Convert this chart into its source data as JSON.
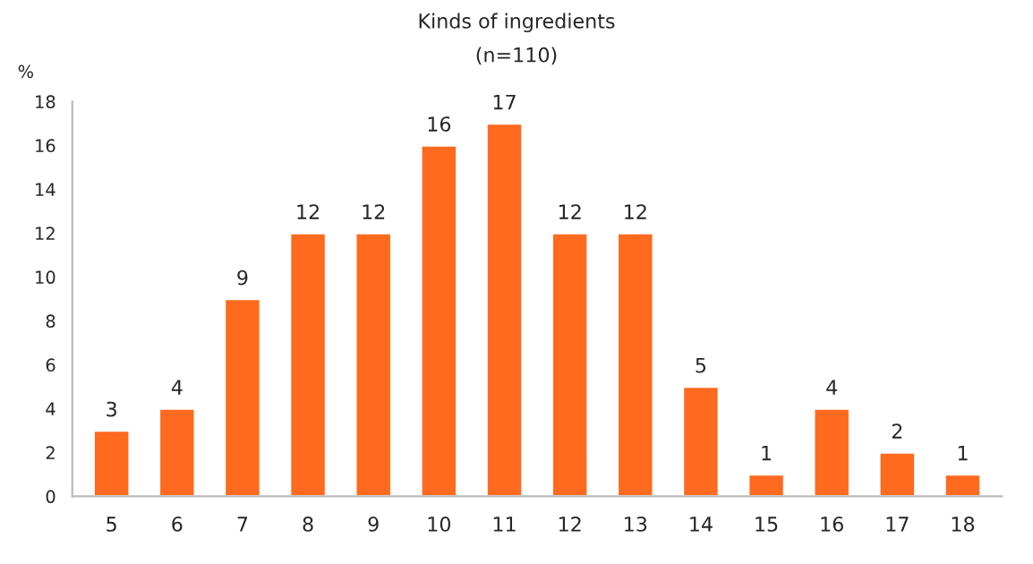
{
  "chart_data": {
    "type": "bar",
    "title": "Kinds of ingredients",
    "subtitle": "(n=110)",
    "ylabel": "%",
    "categories": [
      "5",
      "6",
      "7",
      "8",
      "9",
      "10",
      "11",
      "12",
      "13",
      "14",
      "15",
      "16",
      "17",
      "18"
    ],
    "values": [
      3,
      4,
      9,
      12,
      12,
      16,
      17,
      12,
      12,
      5,
      1,
      4,
      2,
      1
    ],
    "color": "#ff6a1f",
    "data_labels": true,
    "ylim": [
      0,
      18
    ],
    "yticks": [
      0,
      2,
      4,
      6,
      8,
      10,
      12,
      14,
      16,
      18
    ],
    "grid": false,
    "legend": false
  }
}
